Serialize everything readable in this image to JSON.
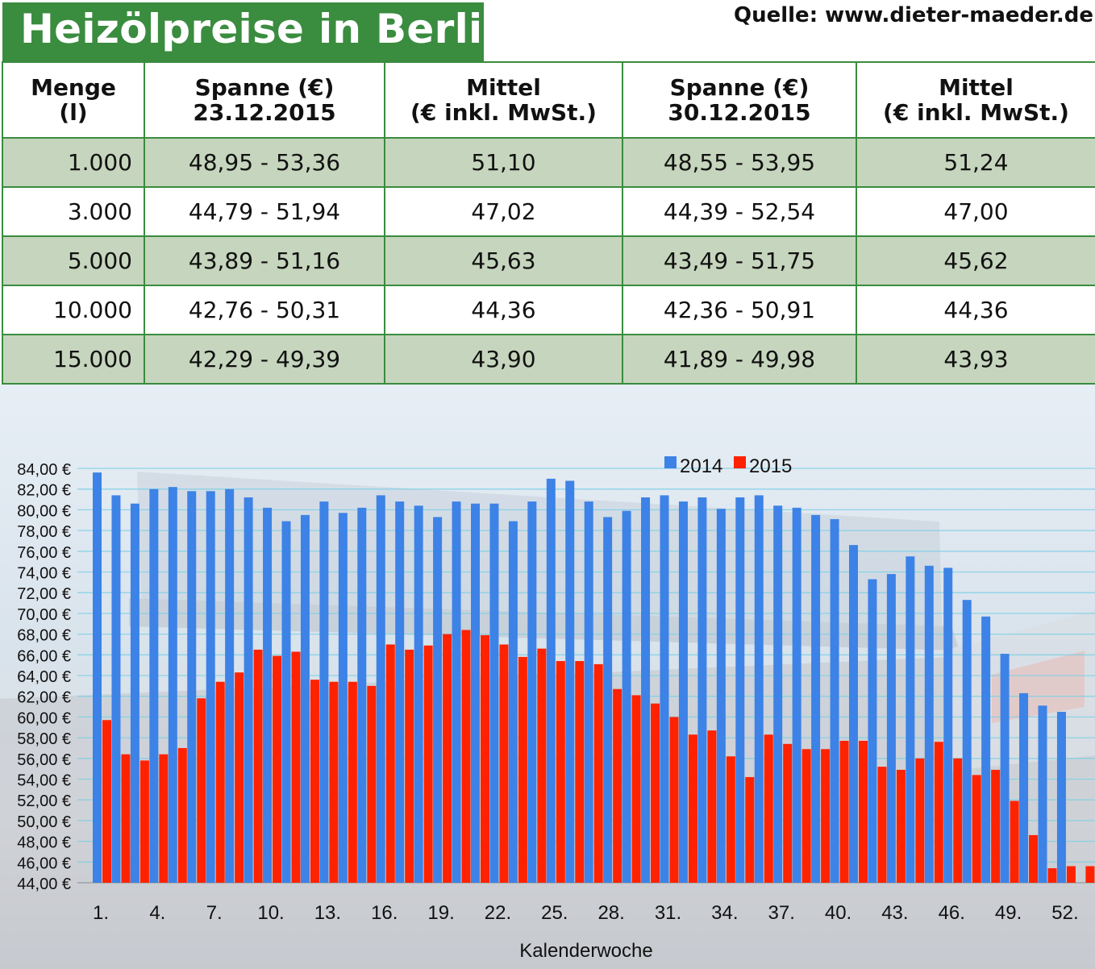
{
  "header": {
    "title": "Heizölpreise in Berlin",
    "source": "Quelle: www.dieter-maeder.de"
  },
  "table": {
    "columns": [
      {
        "line1": "Menge",
        "line2": "(l)"
      },
      {
        "line1": "Spanne (€)",
        "line2": "23.12.2015"
      },
      {
        "line1": "Mittel",
        "line2": "(€ inkl. MwSt.)"
      },
      {
        "line1": "Spanne (€)",
        "line2": "30.12.2015"
      },
      {
        "line1": "Mittel",
        "line2": "(€ inkl. MwSt.)"
      }
    ],
    "rows": [
      [
        "1.000",
        "48,95 - 53,36",
        "51,10",
        "48,55 - 53,95",
        "51,24"
      ],
      [
        "3.000",
        "44,79 - 51,94",
        "47,02",
        "44,39 - 52,54",
        "47,00"
      ],
      [
        "5.000",
        "43,89 - 51,16",
        "45,63",
        "43,49 - 51,75",
        "45,62"
      ],
      [
        "10.000",
        "42,76 - 50,31",
        "44,36",
        "42,36 - 50,91",
        "44,36"
      ],
      [
        "15.000",
        "42,29 - 49,39",
        "43,90",
        "41,89 - 49,98",
        "43,93"
      ]
    ]
  },
  "chart_data": {
    "type": "bar",
    "xlabel": "Kalenderwoche",
    "ylabel": "",
    "ylim": [
      44,
      84
    ],
    "yticks": [
      "84,00 €",
      "82,00 €",
      "80,00 €",
      "78,00 €",
      "76,00 €",
      "74,00 €",
      "72,00 €",
      "70,00 €",
      "68,00 €",
      "66,00 €",
      "64,00 €",
      "62,00 €",
      "60,00 €",
      "58,00 €",
      "56,00 €",
      "54,00 €",
      "52,00 €",
      "50,00 €",
      "48,00 €",
      "46,00 €",
      "44,00 €"
    ],
    "xticks": [
      {
        "week": 1,
        "label": "1."
      },
      {
        "week": 4,
        "label": "4."
      },
      {
        "week": 7,
        "label": "7."
      },
      {
        "week": 10,
        "label": "10."
      },
      {
        "week": 13,
        "label": "13."
      },
      {
        "week": 16,
        "label": "16."
      },
      {
        "week": 19,
        "label": "19."
      },
      {
        "week": 22,
        "label": "22."
      },
      {
        "week": 25,
        "label": "25."
      },
      {
        "week": 28,
        "label": "28."
      },
      {
        "week": 31,
        "label": "31."
      },
      {
        "week": 34,
        "label": "34."
      },
      {
        "week": 37,
        "label": "37."
      },
      {
        "week": 40,
        "label": "40."
      },
      {
        "week": 43,
        "label": "43."
      },
      {
        "week": 46,
        "label": "46."
      },
      {
        "week": 49,
        "label": "49."
      },
      {
        "week": 52,
        "label": "52."
      }
    ],
    "grid": true,
    "legend": "top-center",
    "series": [
      {
        "name": "2014",
        "color": "#3d82e6",
        "values": [
          83.6,
          81.4,
          80.6,
          82.0,
          82.2,
          81.8,
          81.8,
          82.0,
          81.2,
          80.2,
          78.9,
          79.5,
          80.8,
          79.7,
          80.2,
          81.4,
          80.8,
          80.4,
          79.3,
          80.8,
          80.6,
          80.6,
          78.9,
          80.8,
          83.0,
          82.8,
          80.8,
          79.3,
          79.9,
          81.2,
          81.4,
          80.8,
          81.2,
          80.1,
          81.2,
          81.4,
          80.4,
          80.2,
          79.5,
          79.1,
          76.6,
          73.3,
          73.8,
          75.5,
          74.6,
          74.4,
          71.3,
          69.7,
          66.1,
          62.3,
          61.1,
          60.5,
          44.0
        ]
      },
      {
        "name": "2015",
        "color": "#ff2200",
        "values": [
          59.7,
          56.4,
          55.8,
          56.4,
          57.0,
          61.8,
          63.4,
          64.3,
          66.5,
          65.9,
          66.3,
          63.6,
          63.4,
          63.4,
          63.0,
          67.0,
          66.5,
          66.9,
          68.0,
          68.4,
          67.9,
          67.0,
          65.8,
          66.6,
          65.4,
          65.4,
          65.1,
          62.7,
          62.1,
          61.3,
          60.0,
          58.3,
          58.7,
          56.2,
          54.2,
          58.3,
          57.4,
          56.9,
          56.9,
          57.7,
          57.7,
          55.2,
          54.9,
          56.0,
          57.6,
          56.0,
          54.4,
          54.9,
          51.9,
          48.6,
          45.4,
          45.6,
          45.6
        ]
      }
    ]
  }
}
